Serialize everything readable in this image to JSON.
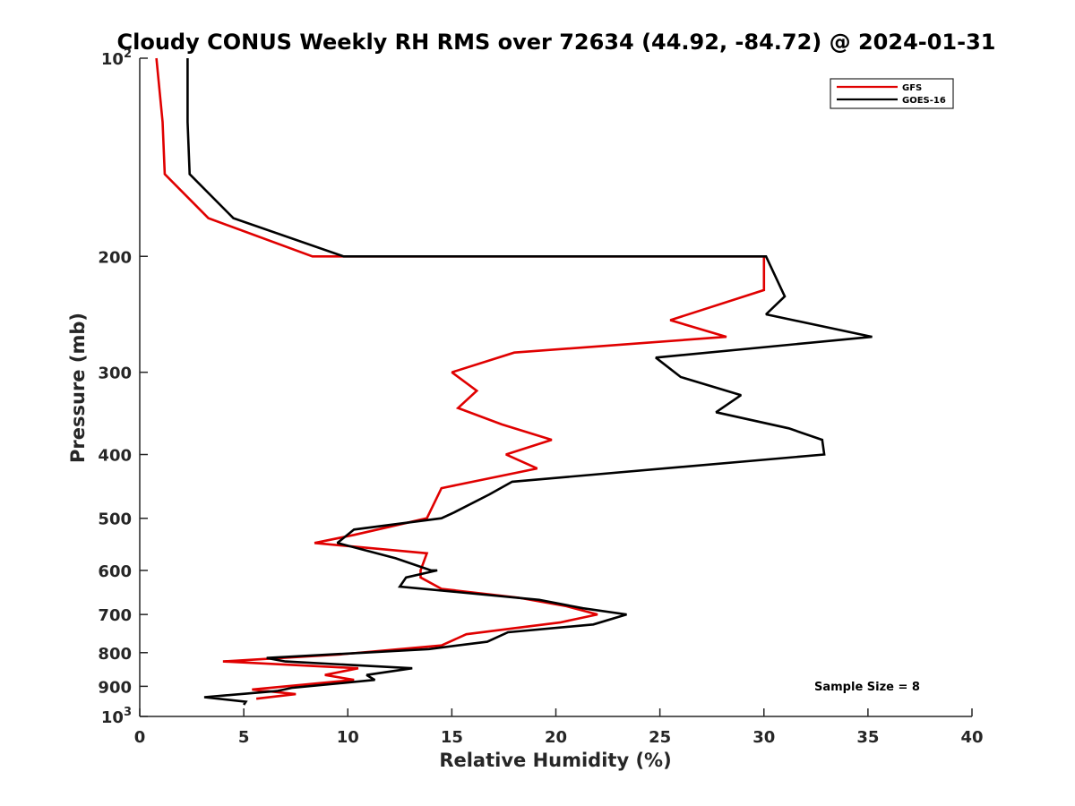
{
  "chart_data": {
    "type": "line",
    "title": "Cloudy CONUS Weekly RH RMS over 72634 (44.92, -84.72) @ 2024-01-31",
    "xlabel": "Relative Humidity (%)",
    "ylabel": "Pressure (mb)",
    "xlim": [
      0,
      40
    ],
    "ylim": [
      100,
      1000
    ],
    "yscale": "log",
    "y_reversed": true,
    "grid": false,
    "legend_position": "top-right",
    "x_ticks": [
      0,
      5,
      10,
      15,
      20,
      25,
      30,
      35,
      40
    ],
    "x_tick_labels": [
      "0",
      "5",
      "10",
      "15",
      "20",
      "25",
      "30",
      "35",
      "40"
    ],
    "y_ticks": [
      {
        "value": 100,
        "base": "10",
        "exp": "2"
      },
      {
        "value": 200,
        "label": "200"
      },
      {
        "value": 300,
        "label": "300"
      },
      {
        "value": 400,
        "label": "400"
      },
      {
        "value": 500,
        "label": "500"
      },
      {
        "value": 600,
        "label": "600"
      },
      {
        "value": 700,
        "label": "700"
      },
      {
        "value": 800,
        "label": "800"
      },
      {
        "value": 900,
        "label": "900"
      },
      {
        "value": 1000,
        "base": "10",
        "exp": "3"
      }
    ],
    "annotation": "Sample Size = 8",
    "series": [
      {
        "name": "GFS",
        "color": "#e00000",
        "points": [
          [
            0.8,
            100
          ],
          [
            1.1,
            125
          ],
          [
            1.2,
            150
          ],
          [
            3.3,
            175
          ],
          [
            8.3,
            200
          ],
          [
            30.0,
            200
          ],
          [
            30.0,
            225
          ],
          [
            25.5,
            250
          ],
          [
            28.2,
            265
          ],
          [
            18.0,
            280
          ],
          [
            15.0,
            300
          ],
          [
            16.2,
            320
          ],
          [
            15.3,
            340
          ],
          [
            17.4,
            360
          ],
          [
            19.8,
            380
          ],
          [
            17.6,
            400
          ],
          [
            19.1,
            420
          ],
          [
            14.5,
            450
          ],
          [
            13.8,
            500
          ],
          [
            10.3,
            530
          ],
          [
            8.4,
            545
          ],
          [
            13.8,
            565
          ],
          [
            13.5,
            600
          ],
          [
            13.5,
            615
          ],
          [
            14.5,
            640
          ],
          [
            18.2,
            660
          ],
          [
            20.5,
            680
          ],
          [
            22.0,
            700
          ],
          [
            20.2,
            720
          ],
          [
            15.7,
            750
          ],
          [
            14.5,
            780
          ],
          [
            9.6,
            805
          ],
          [
            4.0,
            825
          ],
          [
            10.5,
            845
          ],
          [
            8.9,
            865
          ],
          [
            10.3,
            880
          ],
          [
            5.4,
            910
          ],
          [
            7.5,
            925
          ],
          [
            5.6,
            940
          ]
        ]
      },
      {
        "name": "GOES-16",
        "color": "#000000",
        "points": [
          [
            2.3,
            100
          ],
          [
            2.3,
            125
          ],
          [
            2.4,
            150
          ],
          [
            4.5,
            175
          ],
          [
            9.8,
            200
          ],
          [
            30.1,
            200
          ],
          [
            31.0,
            230
          ],
          [
            30.1,
            245
          ],
          [
            35.2,
            265
          ],
          [
            24.8,
            285
          ],
          [
            26.0,
            305
          ],
          [
            28.9,
            325
          ],
          [
            27.7,
            345
          ],
          [
            31.2,
            365
          ],
          [
            32.8,
            380
          ],
          [
            32.9,
            400
          ],
          [
            17.9,
            440
          ],
          [
            16.8,
            460
          ],
          [
            15.1,
            490
          ],
          [
            14.5,
            500
          ],
          [
            10.3,
            520
          ],
          [
            9.5,
            545
          ],
          [
            12.3,
            575
          ],
          [
            14.0,
            600
          ],
          [
            14.3,
            600
          ],
          [
            12.8,
            615
          ],
          [
            12.5,
            635
          ],
          [
            19.2,
            665
          ],
          [
            21.3,
            685
          ],
          [
            23.4,
            700
          ],
          [
            21.8,
            725
          ],
          [
            17.7,
            745
          ],
          [
            16.7,
            770
          ],
          [
            13.9,
            790
          ],
          [
            6.1,
            815
          ],
          [
            7.0,
            825
          ],
          [
            13.1,
            845
          ],
          [
            10.9,
            865
          ],
          [
            11.3,
            880
          ],
          [
            7.3,
            905
          ],
          [
            6.6,
            915
          ],
          [
            3.1,
            935
          ],
          [
            5.1,
            950
          ],
          [
            5.0,
            960
          ]
        ]
      }
    ]
  }
}
